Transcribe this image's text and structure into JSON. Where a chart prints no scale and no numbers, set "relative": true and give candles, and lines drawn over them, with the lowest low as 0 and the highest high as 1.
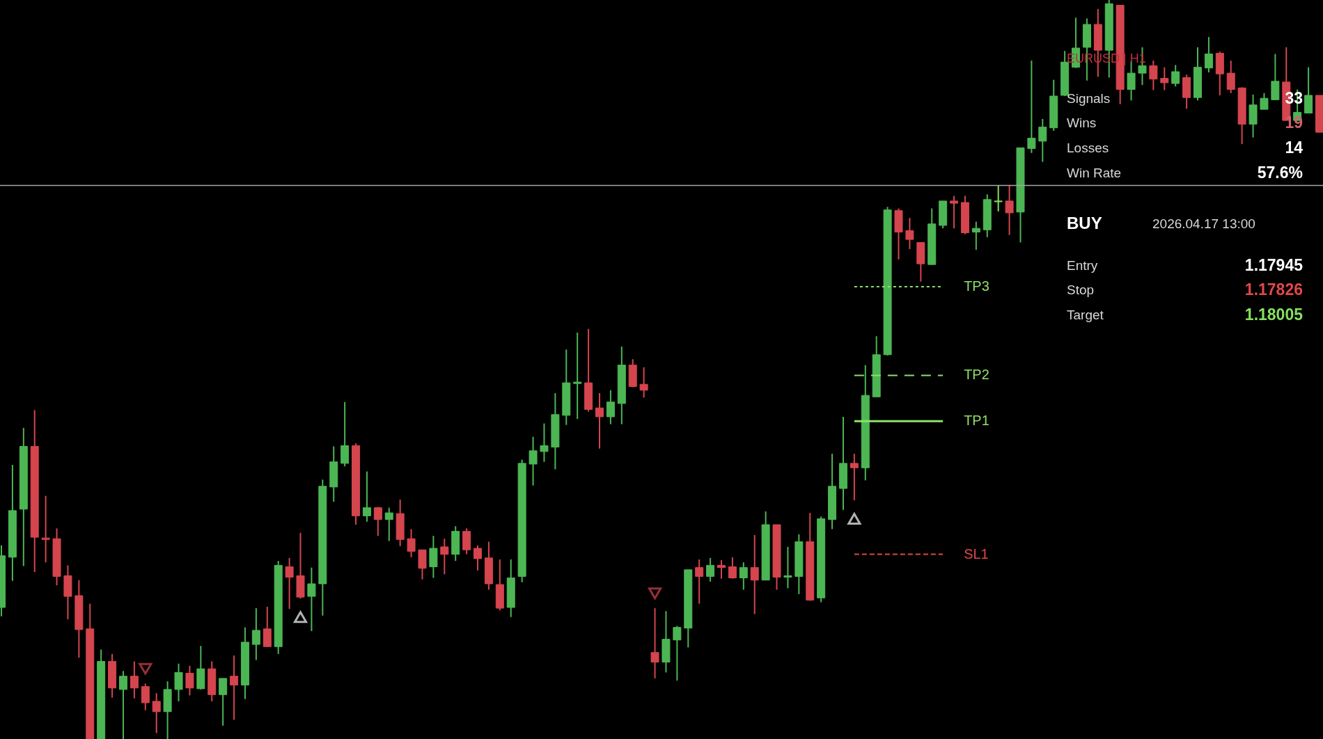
{
  "chart_data": {
    "type": "candlestick",
    "relative": true,
    "categories": [
      null,
      null,
      null,
      null,
      null,
      null,
      null,
      null,
      null,
      null,
      null,
      null,
      null,
      null,
      null,
      null,
      null,
      null,
      null,
      null,
      null,
      null,
      null,
      null,
      null,
      null,
      null,
      null,
      null,
      null,
      null,
      null,
      null,
      null,
      null,
      null,
      null,
      null,
      null,
      null,
      null,
      null,
      null,
      null,
      null,
      null,
      null,
      null,
      null,
      null,
      null,
      null,
      null,
      null,
      null,
      null,
      null,
      null,
      null,
      null,
      null,
      null,
      null,
      null,
      null,
      null,
      null,
      null,
      null,
      null,
      null,
      null,
      null,
      null,
      null,
      null,
      null,
      null,
      null,
      null,
      null,
      null,
      null,
      null,
      null,
      null,
      null,
      null,
      null,
      null,
      null,
      null,
      null,
      null,
      null,
      null,
      null,
      null,
      null,
      null,
      null,
      null,
      null,
      null,
      null,
      null,
      null,
      null,
      null,
      null,
      null,
      null,
      null,
      null,
      null,
      null,
      null,
      null,
      null,
      null
    ],
    "ohlc": [
      [
        0.178,
        0.262,
        0.166,
        0.248
      ],
      [
        0.246,
        0.371,
        0.214,
        0.309
      ],
      [
        0.311,
        0.421,
        0.234,
        0.396
      ],
      [
        0.396,
        0.445,
        0.226,
        0.273
      ],
      [
        0.272,
        0.329,
        0.239,
        0.27
      ],
      [
        0.271,
        0.285,
        0.208,
        0.22
      ],
      [
        0.221,
        0.235,
        0.162,
        0.193
      ],
      [
        0.194,
        0.215,
        0.11,
        0.148
      ],
      [
        0.149,
        0.183,
        0,
        0
      ],
      [
        0,
        0.121,
        0,
        0.105
      ],
      [
        0.105,
        0.115,
        0.056,
        0.069
      ],
      [
        0.067,
        0.092,
        0,
        0.085
      ],
      [
        0.085,
        0.105,
        0.055,
        0.069
      ],
      [
        0.071,
        0.075,
        0.039,
        0.049
      ],
      [
        0.051,
        0.062,
        0.008,
        0.037
      ],
      [
        0.037,
        0.078,
        0,
        0.067
      ],
      [
        0.067,
        0.102,
        0.051,
        0.09
      ],
      [
        0.089,
        0.099,
        0.059,
        0.069
      ],
      [
        0.068,
        0.126,
        0.067,
        0.095
      ],
      [
        0.095,
        0.105,
        0.051,
        0.06
      ],
      [
        0.06,
        0.082,
        0.018,
        0.082
      ],
      [
        0.085,
        0.113,
        0.026,
        0.073
      ],
      [
        0.073,
        0.151,
        0.054,
        0.131
      ],
      [
        0.128,
        0.177,
        0.107,
        0.147
      ],
      [
        0.149,
        0.179,
        0.125,
        0.125
      ],
      [
        0.125,
        0.241,
        0.115,
        0.235
      ],
      [
        0.233,
        0.245,
        0.176,
        0.219
      ],
      [
        0.221,
        0.279,
        0.19,
        0.192
      ],
      [
        0.193,
        0.232,
        0.146,
        0.21
      ],
      [
        0.21,
        0.351,
        0.167,
        0.342
      ],
      [
        0.341,
        0.396,
        0.321,
        0.375
      ],
      [
        0.373,
        0.456,
        0.369,
        0.397
      ],
      [
        0.397,
        0.4,
        0.29,
        0.302
      ],
      [
        0.302,
        0.362,
        0.294,
        0.313
      ],
      [
        0.313,
        0.314,
        0.275,
        0.297
      ],
      [
        0.297,
        0.313,
        0.268,
        0.306
      ],
      [
        0.305,
        0.324,
        0.261,
        0.27
      ],
      [
        0.271,
        0.284,
        0.246,
        0.254
      ],
      [
        0.256,
        0.256,
        0.216,
        0.231
      ],
      [
        0.233,
        0.275,
        0.218,
        0.258
      ],
      [
        0.26,
        0.271,
        0.223,
        0.25
      ],
      [
        0.25,
        0.288,
        0.241,
        0.281
      ],
      [
        0.281,
        0.285,
        0.25,
        0.256
      ],
      [
        0.258,
        0.262,
        0.228,
        0.244
      ],
      [
        0.245,
        0.267,
        0.202,
        0.21
      ],
      [
        0.209,
        0.243,
        0.174,
        0.177
      ],
      [
        0.178,
        0.243,
        0.165,
        0.218
      ],
      [
        0.22,
        0.378,
        0.212,
        0.373
      ],
      [
        0.372,
        0.409,
        0.343,
        0.39
      ],
      [
        0.389,
        0.427,
        0.375,
        0.397
      ],
      [
        0.395,
        0.468,
        0.365,
        0.439
      ],
      [
        0.438,
        0.527,
        0.425,
        0.482
      ],
      [
        0.481,
        0.55,
        0.433,
        0.483
      ],
      [
        0.482,
        0.555,
        0.443,
        0.446
      ],
      [
        0.448,
        0.468,
        0.393,
        0.436
      ],
      [
        0.436,
        0.472,
        0.426,
        0.456
      ],
      [
        0.454,
        0.531,
        0.426,
        0.506
      ],
      [
        0.506,
        0.514,
        0.476,
        0.477
      ],
      [
        0.48,
        0.503,
        0.462,
        0.472
      ],
      [
        0.117,
        0.177,
        0.082,
        0.104
      ],
      [
        0.104,
        0.173,
        0.09,
        0.135
      ],
      [
        0.134,
        0.153,
        0.079,
        0.151
      ],
      [
        0.15,
        0.229,
        0.124,
        0.229
      ],
      [
        0.232,
        0.243,
        0.183,
        0.22
      ],
      [
        0.22,
        0.245,
        0.213,
        0.235
      ],
      [
        0.235,
        0.242,
        0.217,
        0.232
      ],
      [
        0.233,
        0.246,
        0.217,
        0.218
      ],
      [
        0.218,
        0.239,
        0.202,
        0.232
      ],
      [
        0.232,
        0.276,
        0.169,
        0.215
      ],
      [
        0.215,
        0.308,
        0.215,
        0.29
      ],
      [
        0.29,
        0.29,
        0.202,
        0.219
      ],
      [
        0.219,
        0.26,
        0.204,
        0.221
      ],
      [
        0.22,
        0.277,
        0.196,
        0.267
      ],
      [
        0.267,
        0.306,
        0.187,
        0.188
      ],
      [
        0.191,
        0.301,
        0.185,
        0.298
      ],
      [
        0.297,
        0.386,
        0.284,
        0.342
      ],
      [
        0.339,
        0.436,
        0.31,
        0.373
      ],
      [
        0.373,
        0.386,
        0.323,
        0.367
      ],
      [
        0.367,
        0.506,
        0.35,
        0.465
      ],
      [
        0.463,
        0.545,
        0.463,
        0.52
      ],
      [
        0.52,
        0.72,
        0.519,
        0.716
      ],
      [
        0.715,
        0.718,
        0.649,
        0.686
      ],
      [
        0.688,
        0.705,
        0.663,
        0.676
      ],
      [
        0.672,
        0.672,
        0.619,
        0.643
      ],
      [
        0.642,
        0.718,
        0.642,
        0.697
      ],
      [
        0.695,
        0.728,
        0.691,
        0.728
      ],
      [
        0.728,
        0.735,
        0.691,
        0.725
      ],
      [
        0.726,
        0.735,
        0.683,
        0.685
      ],
      [
        0.686,
        0.7,
        0.662,
        0.691
      ],
      [
        0.689,
        0.737,
        0.679,
        0.73
      ],
      [
        0.727,
        0.749,
        0.714,
        0.728
      ],
      [
        0.728,
        0.749,
        0.682,
        0.712
      ],
      [
        0.713,
        0.8,
        0.672,
        0.8
      ],
      [
        0.799,
        0.918,
        0.793,
        0.813
      ],
      [
        0.809,
        0.839,
        0.781,
        0.828
      ],
      [
        0.827,
        0.892,
        0.823,
        0.87
      ],
      [
        0.871,
        0.931,
        0.87,
        0.916
      ],
      [
        0.909,
        0.976,
        0.908,
        0.935
      ],
      [
        0.936,
        0.975,
        0.891,
        0.967
      ],
      [
        0.967,
        0.988,
        0.896,
        0.932
      ],
      [
        0.932,
        1,
        0.895,
        0.995
      ],
      [
        0.993,
        0.993,
        0.859,
        0.879
      ],
      [
        0.879,
        0.917,
        0.864,
        0.901
      ],
      [
        0.901,
        0.936,
        0.885,
        0.911
      ],
      [
        0.911,
        0.918,
        0.878,
        0.893
      ],
      [
        0.894,
        0.909,
        0.878,
        0.888
      ],
      [
        0.887,
        0.912,
        0.883,
        0.903
      ],
      [
        0.895,
        0.899,
        0.853,
        0.868
      ],
      [
        0.868,
        0.936,
        0.864,
        0.909
      ],
      [
        0.908,
        0.95,
        0.902,
        0.927
      ],
      [
        0.928,
        0.93,
        0.871,
        0.9
      ],
      [
        0.901,
        0.918,
        0.874,
        0.879
      ],
      [
        0.881,
        0.882,
        0.805,
        0.832
      ],
      [
        0.832,
        0.872,
        0.814,
        0.858
      ],
      [
        0.852,
        0.874,
        0.852,
        0.867
      ],
      [
        0.865,
        0.927,
        0.865,
        0.89
      ],
      [
        0.889,
        0.936,
        0.837,
        0.837
      ],
      [
        0.837,
        0.879,
        0.837,
        0.848
      ],
      [
        0.847,
        0.909,
        0.847,
        0.871
      ],
      [
        0.871,
        0.871,
        0.821,
        0.821
      ]
    ],
    "colors": [
      "#4cb654",
      "#4cb654",
      "#4cb654",
      "#d4454e",
      "#d4454e",
      "#d4454e",
      "#d4454e",
      "#d4454e",
      "#d4454e",
      "#4cb654",
      "#d4454e",
      "#4cb654",
      "#d4454e",
      "#d4454e",
      "#d4454e",
      "#4cb654",
      "#4cb654",
      "#d4454e",
      "#4cb654",
      "#d4454e",
      "#4cb654",
      "#d4454e",
      "#4cb654",
      "#4cb654",
      "#d4454e",
      "#4cb654",
      "#d4454e",
      "#d4454e",
      "#4cb654",
      "#4cb654",
      "#4cb654",
      "#4cb654",
      "#d4454e",
      "#4cb654",
      "#d4454e",
      "#4cb654",
      "#d4454e",
      "#d4454e",
      "#d4454e",
      "#4cb654",
      "#d4454e",
      "#4cb654",
      "#d4454e",
      "#d4454e",
      "#d4454e",
      "#d4454e",
      "#4cb654",
      "#4cb654",
      "#4cb654",
      "#4cb654",
      "#4cb654",
      "#4cb654",
      "#4cb654",
      "#d4454e",
      "#d4454e",
      "#4cb654",
      "#4cb654",
      "#d4454e",
      "#d4454e",
      "#d4454e",
      "#4cb654",
      "#4cb654",
      "#4cb654",
      "#d4454e",
      "#4cb654",
      "#d4454e",
      "#d4454e",
      "#4cb654",
      "#d4454e",
      "#4cb654",
      "#d4454e",
      "#4cb654",
      "#4cb654",
      "#d4454e",
      "#4cb654",
      "#4cb654",
      "#4cb654",
      "#d4454e",
      "#4cb654",
      "#4cb654",
      "#4cb654",
      "#d4454e",
      "#d4454e",
      "#d4454e",
      "#4cb654",
      "#4cb654",
      "#d4454e",
      "#d4454e",
      "#4cb654",
      "#4cb654",
      "#86e060",
      "#d4454e",
      "#4cb654",
      "#4cb654",
      "#4cb654",
      "#4cb654",
      "#4cb654",
      "#4cb654",
      "#4cb654",
      "#d4454e",
      "#4cb654",
      "#d4454e",
      "#4cb654",
      "#4cb654",
      "#d4454e",
      "#d4454e",
      "#4cb654",
      "#d4454e",
      "#4cb654",
      "#4cb654",
      "#d4454e",
      "#d4454e",
      "#d4454e",
      "#4cb654",
      "#4cb654",
      "#4cb654",
      "#d4454e",
      "#4cb654",
      "#4cb654",
      "#d4454e"
    ],
    "series": [
      {
        "type": "line",
        "name": "TP3",
        "color": "#8fe068",
        "line_style": "dotted",
        "values": [
          null,
          null,
          null,
          null,
          null,
          null,
          null,
          null,
          null,
          null,
          null,
          null,
          null,
          null,
          null,
          null,
          null,
          null,
          null,
          null,
          null,
          null,
          null,
          null,
          null,
          null,
          null,
          null,
          null,
          null,
          null,
          null,
          null,
          null,
          null,
          null,
          null,
          null,
          null,
          null,
          null,
          null,
          null,
          null,
          null,
          null,
          null,
          null,
          null,
          null,
          null,
          null,
          null,
          null,
          null,
          null,
          null,
          null,
          null,
          null,
          null,
          null,
          null,
          null,
          null,
          null,
          null,
          null,
          null,
          null,
          null,
          null,
          null,
          null,
          null,
          null,
          null,
          0.612,
          0.612,
          0.612,
          0.612,
          0.612,
          0.612,
          0.612,
          0.612,
          0.612,
          null,
          null,
          null,
          null,
          null,
          null,
          null,
          null,
          null,
          null,
          null,
          null,
          null,
          null,
          null,
          null,
          null,
          null,
          null,
          null,
          null,
          null,
          null,
          null,
          null,
          null,
          null,
          null,
          null,
          null,
          null,
          null,
          null,
          null
        ]
      },
      {
        "type": "line",
        "name": "TP2",
        "color": "#8fe068",
        "line_style": "dashed",
        "values": [
          null,
          null,
          null,
          null,
          null,
          null,
          null,
          null,
          null,
          null,
          null,
          null,
          null,
          null,
          null,
          null,
          null,
          null,
          null,
          null,
          null,
          null,
          null,
          null,
          null,
          null,
          null,
          null,
          null,
          null,
          null,
          null,
          null,
          null,
          null,
          null,
          null,
          null,
          null,
          null,
          null,
          null,
          null,
          null,
          null,
          null,
          null,
          null,
          null,
          null,
          null,
          null,
          null,
          null,
          null,
          null,
          null,
          null,
          null,
          null,
          null,
          null,
          null,
          null,
          null,
          null,
          null,
          null,
          null,
          null,
          null,
          null,
          null,
          null,
          null,
          null,
          null,
          0.492,
          0.492,
          0.492,
          0.492,
          0.492,
          0.492,
          0.492,
          0.492,
          0.492,
          null,
          null,
          null,
          null,
          null,
          null,
          null,
          null,
          null,
          null,
          null,
          null,
          null,
          null,
          null,
          null,
          null,
          null,
          null,
          null,
          null,
          null,
          null,
          null,
          null,
          null,
          null,
          null,
          null,
          null,
          null,
          null,
          null,
          null
        ]
      },
      {
        "type": "line",
        "name": "TP1",
        "color": "#8fe068",
        "line_style": "solid",
        "values": [
          null,
          null,
          null,
          null,
          null,
          null,
          null,
          null,
          null,
          null,
          null,
          null,
          null,
          null,
          null,
          null,
          null,
          null,
          null,
          null,
          null,
          null,
          null,
          null,
          null,
          null,
          null,
          null,
          null,
          null,
          null,
          null,
          null,
          null,
          null,
          null,
          null,
          null,
          null,
          null,
          null,
          null,
          null,
          null,
          null,
          null,
          null,
          null,
          null,
          null,
          null,
          null,
          null,
          null,
          null,
          null,
          null,
          null,
          null,
          null,
          null,
          null,
          null,
          null,
          null,
          null,
          null,
          null,
          null,
          null,
          null,
          null,
          null,
          null,
          null,
          null,
          null,
          0.43,
          0.43,
          0.43,
          0.43,
          0.43,
          0.43,
          0.43,
          0.43,
          0.43,
          null,
          null,
          null,
          null,
          null,
          null,
          null,
          null,
          null,
          null,
          null,
          null,
          null,
          null,
          null,
          null,
          null,
          null,
          null,
          null,
          null,
          null,
          null,
          null,
          null,
          null,
          null,
          null,
          null,
          null,
          null,
          null,
          null,
          null
        ]
      },
      {
        "type": "line",
        "name": "SL1",
        "color": "#e04848",
        "line_style": "dashed",
        "values": [
          null,
          null,
          null,
          null,
          null,
          null,
          null,
          null,
          null,
          null,
          null,
          null,
          null,
          null,
          null,
          null,
          null,
          null,
          null,
          null,
          null,
          null,
          null,
          null,
          null,
          null,
          null,
          null,
          null,
          null,
          null,
          null,
          null,
          null,
          null,
          null,
          null,
          null,
          null,
          null,
          null,
          null,
          null,
          null,
          null,
          null,
          null,
          null,
          null,
          null,
          null,
          null,
          null,
          null,
          null,
          null,
          null,
          null,
          null,
          null,
          null,
          null,
          null,
          null,
          null,
          null,
          null,
          null,
          null,
          null,
          null,
          null,
          null,
          null,
          null,
          null,
          null,
          0.25,
          0.25,
          0.25,
          0.25,
          0.25,
          0.25,
          0.25,
          0.25,
          0.25,
          null,
          null,
          null,
          null,
          null,
          null,
          null,
          null,
          null,
          null,
          null,
          null,
          null,
          null,
          null,
          null,
          null,
          null,
          null,
          null,
          null,
          null,
          null,
          null,
          null,
          null,
          null,
          null,
          null,
          null,
          null,
          null,
          null,
          null
        ]
      },
      {
        "type": "scatter",
        "color": "#d4454e",
        "marker": "triangle",
        "values": [
          null,
          null,
          null,
          null,
          null,
          null,
          null,
          null,
          null,
          null,
          null,
          null,
          null,
          0.095,
          null,
          null,
          null,
          null,
          null,
          null,
          null,
          null,
          null,
          null,
          null,
          null,
          null,
          null,
          null,
          null,
          null,
          null,
          null,
          null,
          null,
          null,
          null,
          null,
          null,
          null,
          null,
          null,
          null,
          null,
          null,
          null,
          null,
          null,
          null,
          null,
          null,
          null,
          null,
          null,
          null,
          null,
          null,
          null,
          null,
          0.197,
          null,
          null,
          null,
          null,
          null,
          null,
          null,
          null,
          null,
          null,
          null,
          null,
          null,
          null,
          null,
          null,
          null,
          null,
          null,
          null,
          null,
          null,
          null,
          null,
          null,
          null,
          null,
          null,
          null,
          null,
          null,
          null,
          null,
          null,
          null,
          null,
          null,
          null,
          null,
          null,
          null,
          null,
          null,
          null,
          null,
          null,
          null,
          null,
          null,
          null,
          null,
          null,
          null,
          null,
          null,
          null,
          null,
          null,
          null,
          null
        ]
      },
      {
        "type": "scatter",
        "color": "#ffffff",
        "marker": "triangle",
        "values": [
          null,
          null,
          null,
          null,
          null,
          null,
          null,
          null,
          null,
          null,
          null,
          null,
          null,
          null,
          null,
          null,
          null,
          null,
          null,
          null,
          null,
          null,
          null,
          null,
          null,
          null,
          null,
          0.165,
          null,
          null,
          null,
          null,
          null,
          null,
          null,
          null,
          null,
          null,
          null,
          null,
          null,
          null,
          null,
          null,
          null,
          null,
          null,
          null,
          null,
          null,
          null,
          null,
          null,
          null,
          null,
          null,
          null,
          null,
          null,
          null,
          null,
          null,
          null,
          null,
          null,
          null,
          null,
          null,
          null,
          null,
          null,
          null,
          null,
          null,
          null,
          null,
          null,
          0.298,
          null,
          null,
          null,
          null,
          null,
          null,
          null,
          null,
          null,
          null,
          null,
          null,
          null,
          null,
          null,
          null,
          null,
          null,
          null,
          null,
          null,
          null,
          null,
          null,
          null,
          null,
          null,
          null,
          null,
          null,
          null,
          null,
          null,
          null,
          null,
          null,
          null,
          null,
          null,
          null,
          null,
          null
        ]
      }
    ],
    "ref_lines": [
      {
        "axis": "y",
        "value": 0.749,
        "color": "#a8a8a8"
      }
    ],
    "annotations": [
      "EURUSD | H1",
      "Signals",
      "33",
      "Wins",
      "19",
      "Losses",
      "14",
      "Win Rate",
      "57.6%",
      "BUY",
      "2026.04.17 13:00",
      "Entry",
      "1.17945",
      "Stop",
      "1.17826",
      "Target",
      "1.18005"
    ]
  }
}
